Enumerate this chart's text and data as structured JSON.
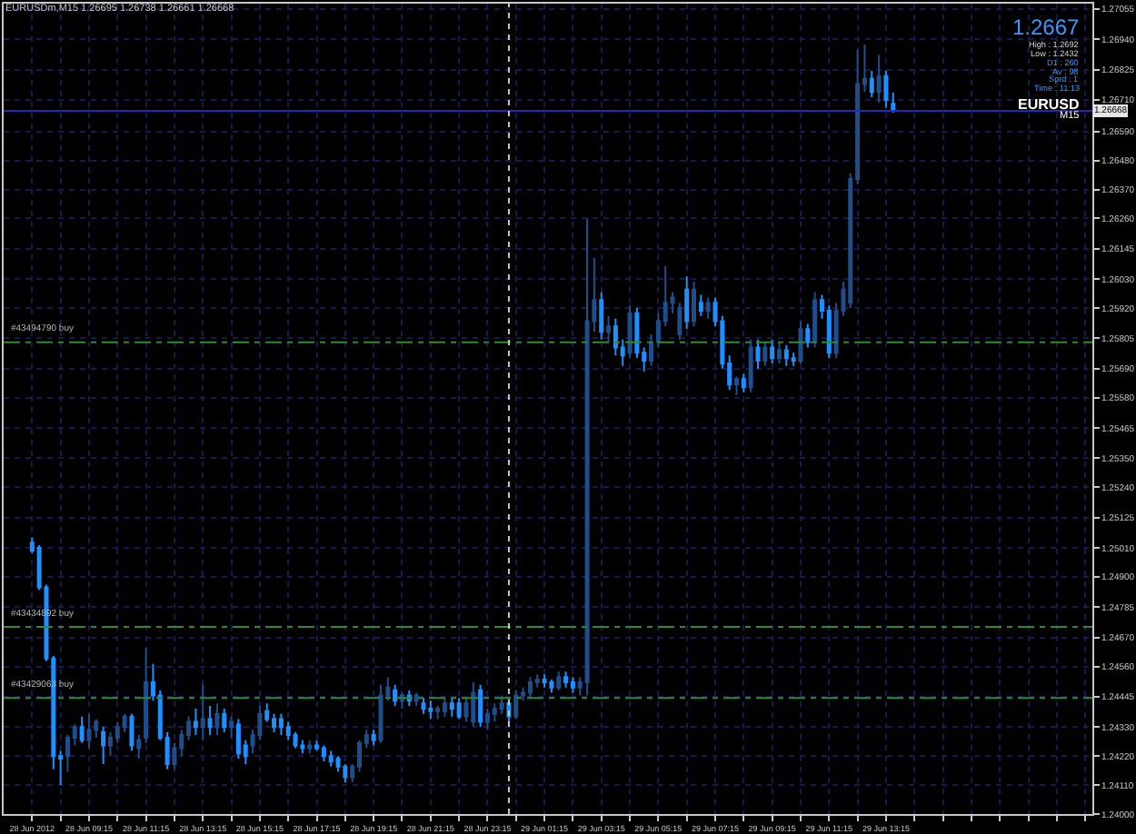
{
  "chart_data": {
    "type": "candlestick",
    "title": "EURUSDm,M15 1.26695 1.26738 1.26661 1.26668",
    "x": [
      "2012-06-28T07:15",
      "2012-06-28T07:30",
      "2012-06-28T07:45",
      "2012-06-28T08:00",
      "2012-06-28T08:15",
      "2012-06-28T08:30",
      "2012-06-28T08:45",
      "2012-06-28T09:00",
      "2012-06-28T09:15",
      "2012-06-28T09:30",
      "2012-06-28T09:45",
      "2012-06-28T10:00",
      "2012-06-28T10:15",
      "2012-06-28T10:30",
      "2012-06-28T10:45",
      "2012-06-28T11:00",
      "2012-06-28T11:15",
      "2012-06-28T11:30",
      "2012-06-28T11:45",
      "2012-06-28T12:00",
      "2012-06-28T12:15",
      "2012-06-28T12:30",
      "2012-06-28T12:45",
      "2012-06-28T13:00",
      "2012-06-28T13:15",
      "2012-06-28T13:30",
      "2012-06-28T13:45",
      "2012-06-28T14:00",
      "2012-06-28T14:15",
      "2012-06-28T14:30",
      "2012-06-28T14:45",
      "2012-06-28T15:00",
      "2012-06-28T15:15",
      "2012-06-28T15:30",
      "2012-06-28T15:45",
      "2012-06-28T16:00",
      "2012-06-28T16:15",
      "2012-06-28T16:30",
      "2012-06-28T16:45",
      "2012-06-28T17:00",
      "2012-06-28T17:15",
      "2012-06-28T17:30",
      "2012-06-28T17:45",
      "2012-06-28T18:00",
      "2012-06-28T18:15",
      "2012-06-28T18:30",
      "2012-06-28T18:45",
      "2012-06-28T19:00",
      "2012-06-28T19:15",
      "2012-06-28T19:30",
      "2012-06-28T19:45",
      "2012-06-28T20:00",
      "2012-06-28T20:15",
      "2012-06-28T20:30",
      "2012-06-28T20:45",
      "2012-06-28T21:00",
      "2012-06-28T21:15",
      "2012-06-28T21:30",
      "2012-06-28T21:45",
      "2012-06-28T22:00",
      "2012-06-28T22:15",
      "2012-06-28T22:30",
      "2012-06-28T22:45",
      "2012-06-28T23:00",
      "2012-06-28T23:15",
      "2012-06-28T23:30",
      "2012-06-28T23:45",
      "2012-06-29T00:00",
      "2012-06-29T00:15",
      "2012-06-29T00:30",
      "2012-06-29T00:45",
      "2012-06-29T01:00",
      "2012-06-29T01:15",
      "2012-06-29T01:30",
      "2012-06-29T01:45",
      "2012-06-29T02:00",
      "2012-06-29T02:15",
      "2012-06-29T02:30",
      "2012-06-29T02:45",
      "2012-06-29T03:00",
      "2012-06-29T03:15",
      "2012-06-29T03:30",
      "2012-06-29T03:45",
      "2012-06-29T04:00",
      "2012-06-29T04:15",
      "2012-06-29T04:30",
      "2012-06-29T04:45",
      "2012-06-29T05:00",
      "2012-06-29T05:15",
      "2012-06-29T05:30",
      "2012-06-29T05:45",
      "2012-06-29T06:00",
      "2012-06-29T06:15",
      "2012-06-29T06:30",
      "2012-06-29T06:45",
      "2012-06-29T07:00",
      "2012-06-29T07:15",
      "2012-06-29T07:30",
      "2012-06-29T07:45",
      "2012-06-29T08:00",
      "2012-06-29T08:15",
      "2012-06-29T08:30",
      "2012-06-29T08:45",
      "2012-06-29T09:00",
      "2012-06-29T09:15",
      "2012-06-29T09:30",
      "2012-06-29T09:45",
      "2012-06-29T10:00",
      "2012-06-29T10:15",
      "2012-06-29T10:30",
      "2012-06-29T10:45",
      "2012-06-29T11:00",
      "2012-06-29T11:15",
      "2012-06-29T11:30",
      "2012-06-29T11:45",
      "2012-06-29T12:00",
      "2012-06-29T12:15",
      "2012-06-29T12:30",
      "2012-06-29T12:45",
      "2012-06-29T13:00",
      "2012-06-29T13:15",
      "2012-06-29T13:30"
    ],
    "ohlc": [
      [
        1.2503,
        1.2505,
        1.2499,
        1.25
      ],
      [
        1.2501,
        1.2502,
        1.2485,
        1.2486
      ],
      [
        1.2486,
        1.2487,
        1.2458,
        1.2459
      ],
      [
        1.2459,
        1.246,
        1.2417,
        1.2422
      ],
      [
        1.2422,
        1.2424,
        1.2411,
        1.2421
      ],
      [
        1.2422,
        1.243,
        1.2416,
        1.2429
      ],
      [
        1.2429,
        1.2434,
        1.2426,
        1.2433
      ],
      [
        1.2433,
        1.2437,
        1.2427,
        1.2428
      ],
      [
        1.2428,
        1.2438,
        1.2425,
        1.2432
      ],
      [
        1.2432,
        1.2436,
        1.2429,
        1.2435
      ],
      [
        1.2431,
        1.2433,
        1.2419,
        1.2426
      ],
      [
        1.2426,
        1.2431,
        1.2422,
        1.2429
      ],
      [
        1.2429,
        1.2435,
        1.2427,
        1.2433
      ],
      [
        1.2433,
        1.2438,
        1.2431,
        1.2437
      ],
      [
        1.2437,
        1.2438,
        1.2424,
        1.2426
      ],
      [
        1.2425,
        1.243,
        1.2421,
        1.2428
      ],
      [
        1.2429,
        1.2463,
        1.2427,
        1.245
      ],
      [
        1.245,
        1.2457,
        1.2443,
        1.2445
      ],
      [
        1.2445,
        1.2447,
        1.2428,
        1.2429
      ],
      [
        1.2429,
        1.2431,
        1.2417,
        1.2419
      ],
      [
        1.2419,
        1.2427,
        1.2417,
        1.2425
      ],
      [
        1.2425,
        1.2432,
        1.2422,
        1.243
      ],
      [
        1.243,
        1.2437,
        1.2428,
        1.2435
      ],
      [
        1.2435,
        1.244,
        1.243,
        1.2433
      ],
      [
        1.2433,
        1.2449,
        1.2428,
        1.2436
      ],
      [
        1.2436,
        1.2441,
        1.243,
        1.2433
      ],
      [
        1.2433,
        1.2442,
        1.243,
        1.2438
      ],
      [
        1.2438,
        1.244,
        1.2431,
        1.2433
      ],
      [
        1.2433,
        1.2437,
        1.2429,
        1.2435
      ],
      [
        1.2434,
        1.2436,
        1.2421,
        1.2423
      ],
      [
        1.2426,
        1.2428,
        1.2419,
        1.2422
      ],
      [
        1.2426,
        1.2432,
        1.2423,
        1.243
      ],
      [
        1.243,
        1.2441,
        1.2428,
        1.2438
      ],
      [
        1.2439,
        1.2442,
        1.2435,
        1.2436
      ],
      [
        1.2436,
        1.2438,
        1.2431,
        1.2433
      ],
      [
        1.2436,
        1.2438,
        1.243,
        1.2433
      ],
      [
        1.2433,
        1.2435,
        1.2428,
        1.243
      ],
      [
        1.243,
        1.2431,
        1.2425,
        1.2426
      ],
      [
        1.2426,
        1.2428,
        1.2423,
        1.2425
      ],
      [
        1.2425,
        1.2428,
        1.2423,
        1.2426
      ],
      [
        1.2426,
        1.2428,
        1.2424,
        1.2425
      ],
      [
        1.2425,
        1.2426,
        1.242,
        1.2422
      ],
      [
        1.2422,
        1.2424,
        1.2418,
        1.242
      ],
      [
        1.2421,
        1.2422,
        1.2416,
        1.2418
      ],
      [
        1.2418,
        1.2419,
        1.2412,
        1.2414
      ],
      [
        1.2414,
        1.2419,
        1.2412,
        1.2418
      ],
      [
        1.2418,
        1.2428,
        1.2416,
        1.2427
      ],
      [
        1.2427,
        1.2432,
        1.2425,
        1.243
      ],
      [
        1.243,
        1.2432,
        1.2426,
        1.2428
      ],
      [
        1.2428,
        1.2449,
        1.2427,
        1.2445
      ],
      [
        1.2445,
        1.2452,
        1.2443,
        1.2448
      ],
      [
        1.2447,
        1.2449,
        1.2441,
        1.2443
      ],
      [
        1.2443,
        1.2446,
        1.244,
        1.2445
      ],
      [
        1.2445,
        1.2447,
        1.2441,
        1.2443
      ],
      [
        1.2443,
        1.2446,
        1.2441,
        1.2445
      ],
      [
        1.2442,
        1.2444,
        1.2438,
        1.244
      ],
      [
        1.244,
        1.2443,
        1.2436,
        1.2439
      ],
      [
        1.2439,
        1.2441,
        1.2436,
        1.244
      ],
      [
        1.2439,
        1.2444,
        1.2437,
        1.2442
      ],
      [
        1.2442,
        1.2444,
        1.2437,
        1.244
      ],
      [
        1.2442,
        1.2444,
        1.2436,
        1.2437
      ],
      [
        1.2437,
        1.2444,
        1.2435,
        1.2442
      ],
      [
        1.2435,
        1.245,
        1.2433,
        1.2446
      ],
      [
        1.2447,
        1.2449,
        1.2433,
        1.2435
      ],
      [
        1.2435,
        1.244,
        1.2432,
        1.2438
      ],
      [
        1.2438,
        1.2442,
        1.2435,
        1.244
      ],
      [
        1.244,
        1.2445,
        1.2438,
        1.2442
      ],
      [
        1.2442,
        1.2444,
        1.2434,
        1.2437
      ],
      [
        1.2437,
        1.2447,
        1.2436,
        1.2445
      ],
      [
        1.2445,
        1.2448,
        1.2443,
        1.2446
      ],
      [
        1.2446,
        1.2452,
        1.2444,
        1.245
      ],
      [
        1.245,
        1.2453,
        1.2448,
        1.2451
      ],
      [
        1.2451,
        1.2453,
        1.2448,
        1.245
      ],
      [
        1.245,
        1.2451,
        1.2446,
        1.2448
      ],
      [
        1.2448,
        1.2454,
        1.2447,
        1.2452
      ],
      [
        1.2452,
        1.2454,
        1.2448,
        1.245
      ],
      [
        1.245,
        1.2452,
        1.2446,
        1.2448
      ],
      [
        1.2448,
        1.2452,
        1.2445,
        1.245
      ],
      [
        1.245,
        1.2626,
        1.2445,
        1.2587
      ],
      [
        1.2587,
        1.2611,
        1.2583,
        1.2595
      ],
      [
        1.2595,
        1.2598,
        1.258,
        1.2583
      ],
      [
        1.2583,
        1.2589,
        1.2579,
        1.2585
      ],
      [
        1.2585,
        1.2588,
        1.2574,
        1.2577
      ],
      [
        1.2577,
        1.258,
        1.257,
        1.2574
      ],
      [
        1.2575,
        1.2593,
        1.2573,
        1.259
      ],
      [
        1.259,
        1.2592,
        1.2573,
        1.2575
      ],
      [
        1.2575,
        1.2577,
        1.2568,
        1.2572
      ],
      [
        1.2572,
        1.2582,
        1.257,
        1.2579
      ],
      [
        1.2579,
        1.259,
        1.2577,
        1.2587
      ],
      [
        1.2587,
        1.2608,
        1.2585,
        1.2594
      ],
      [
        1.2594,
        1.2598,
        1.259,
        1.2596
      ],
      [
        1.2582,
        1.2594,
        1.258,
        1.2592
      ],
      [
        1.2599,
        1.2604,
        1.2584,
        1.2587
      ],
      [
        1.2587,
        1.2602,
        1.2585,
        1.2599
      ],
      [
        1.2594,
        1.2597,
        1.2589,
        1.2591
      ],
      [
        1.2591,
        1.2596,
        1.2588,
        1.2594
      ],
      [
        1.2594,
        1.2596,
        1.2585,
        1.2587
      ],
      [
        1.2587,
        1.2589,
        1.2569,
        1.2571
      ],
      [
        1.2571,
        1.2574,
        1.2561,
        1.2563
      ],
      [
        1.2563,
        1.2566,
        1.2559,
        1.2565
      ],
      [
        1.2565,
        1.2567,
        1.256,
        1.2562
      ],
      [
        1.2562,
        1.258,
        1.256,
        1.2577
      ],
      [
        1.2577,
        1.258,
        1.2569,
        1.2572
      ],
      [
        1.2572,
        1.2579,
        1.257,
        1.2577
      ],
      [
        1.2577,
        1.258,
        1.2571,
        1.2573
      ],
      [
        1.2573,
        1.2579,
        1.2571,
        1.2576
      ],
      [
        1.2576,
        1.2578,
        1.257,
        1.2573
      ],
      [
        1.2573,
        1.2575,
        1.257,
        1.2572
      ],
      [
        1.2572,
        1.2587,
        1.2571,
        1.2584
      ],
      [
        1.2584,
        1.2586,
        1.2577,
        1.2579
      ],
      [
        1.2579,
        1.2598,
        1.2577,
        1.2595
      ],
      [
        1.2595,
        1.2597,
        1.2588,
        1.2591
      ],
      [
        1.2591,
        1.2593,
        1.2573,
        1.2575
      ],
      [
        1.2575,
        1.2594,
        1.2573,
        1.2591
      ],
      [
        1.2591,
        1.2602,
        1.2589,
        1.2599
      ],
      [
        1.2594,
        1.2643,
        1.2592,
        1.2641
      ],
      [
        1.2641,
        1.269,
        1.2639,
        1.2677
      ],
      [
        1.2677,
        1.2692,
        1.2674,
        1.2679
      ],
      [
        1.2679,
        1.2682,
        1.2672,
        1.2674
      ],
      [
        1.2674,
        1.2688,
        1.267,
        1.268
      ],
      [
        1.268,
        1.2682,
        1.2668,
        1.2671
      ],
      [
        1.26695,
        1.26738,
        1.26661,
        1.26668
      ]
    ],
    "colors": [
      "#1e90ff",
      "#1e90ff",
      "#1e90ff",
      "#1e90ff",
      "#1e90ff",
      "#1f4e8c",
      "#1f4e8c",
      "#1e90ff",
      "#1f4e8c",
      "#1f4e8c",
      "#1e90ff",
      "#1f4e8c",
      "#1f4e8c",
      "#1f4e8c",
      "#1e90ff",
      "#1f4e8c",
      "#1f4e8c",
      "#1e90ff",
      "#1e90ff",
      "#1e90ff",
      "#1f4e8c",
      "#1f4e8c",
      "#1f4e8c",
      "#1e90ff",
      "#1f4e8c",
      "#1e90ff",
      "#1f4e8c",
      "#1e90ff",
      "#1f4e8c",
      "#1e90ff",
      "#1e90ff",
      "#1f4e8c",
      "#1f4e8c",
      "#1e90ff",
      "#1e90ff",
      "#1e90ff",
      "#1e90ff",
      "#1e90ff",
      "#1e90ff",
      "#1f4e8c",
      "#1e90ff",
      "#1e90ff",
      "#1e90ff",
      "#1e90ff",
      "#1e90ff",
      "#1f4e8c",
      "#1f4e8c",
      "#1f4e8c",
      "#1e90ff",
      "#1f4e8c",
      "#1f4e8c",
      "#1e90ff",
      "#1f4e8c",
      "#1e90ff",
      "#1f4e8c",
      "#1e90ff",
      "#1e90ff",
      "#1f4e8c",
      "#1f4e8c",
      "#1e90ff",
      "#1e90ff",
      "#1f4e8c",
      "#1f4e8c",
      "#1e90ff",
      "#1f4e8c",
      "#1f4e8c",
      "#1f4e8c",
      "#1e90ff",
      "#1f4e8c",
      "#1f4e8c",
      "#1f4e8c",
      "#1f4e8c",
      "#1e90ff",
      "#1e90ff",
      "#1f4e8c",
      "#1e90ff",
      "#1e90ff",
      "#1f4e8c",
      "#1f4e8c",
      "#1f4e8c",
      "#1e90ff",
      "#1f4e8c",
      "#1e90ff",
      "#1e90ff",
      "#1f4e8c",
      "#1e90ff",
      "#1e90ff",
      "#1f4e8c",
      "#1f4e8c",
      "#1f4e8c",
      "#1f4e8c",
      "#1f4e8c",
      "#1e90ff",
      "#1f4e8c",
      "#1e90ff",
      "#1f4e8c",
      "#1e90ff",
      "#1e90ff",
      "#1e90ff",
      "#1f4e8c",
      "#1e90ff",
      "#1f4e8c",
      "#1e90ff",
      "#1f4e8c",
      "#1e90ff",
      "#1f4e8c",
      "#1e90ff",
      "#1e90ff",
      "#1f4e8c",
      "#1e90ff",
      "#1f4e8c",
      "#1e90ff",
      "#1e90ff",
      "#1f4e8c",
      "#1f4e8c",
      "#1f4e8c",
      "#1f4e8c",
      "#1f4e8c",
      "#1e90ff",
      "#1f4e8c",
      "#1e90ff",
      "#1e90ff"
    ],
    "xlim": [
      "2012-06-28T06:15",
      "2012-06-29T20:30"
    ],
    "ylim": [
      1.24,
      1.27075
    ],
    "xticks": [
      {
        "value": "2012-06-28T07:15",
        "label": "28 Jun 2012"
      },
      {
        "value": "2012-06-28T08:15",
        "label": null
      },
      {
        "value": "2012-06-28T09:15",
        "label": "28 Jun 09:15"
      },
      {
        "value": "2012-06-28T10:15",
        "label": null
      },
      {
        "value": "2012-06-28T11:15",
        "label": "28 Jun 11:15"
      },
      {
        "value": "2012-06-28T12:15",
        "label": null
      },
      {
        "value": "2012-06-28T13:15",
        "label": "28 Jun 13:15"
      },
      {
        "value": "2012-06-28T14:15",
        "label": null
      },
      {
        "value": "2012-06-28T15:15",
        "label": "28 Jun 15:15"
      },
      {
        "value": "2012-06-28T16:15",
        "label": null
      },
      {
        "value": "2012-06-28T17:15",
        "label": "28 Jun 17:15"
      },
      {
        "value": "2012-06-28T18:15",
        "label": null
      },
      {
        "value": "2012-06-28T19:15",
        "label": "28 Jun 19:15"
      },
      {
        "value": "2012-06-28T20:15",
        "label": null
      },
      {
        "value": "2012-06-28T21:15",
        "label": "28 Jun 21:15"
      },
      {
        "value": "2012-06-28T22:15",
        "label": null
      },
      {
        "value": "2012-06-28T23:15",
        "label": "28 Jun 23:15"
      },
      {
        "value": "2012-06-29T00:15",
        "label": null
      },
      {
        "value": "2012-06-29T01:15",
        "label": "29 Jun 01:15"
      },
      {
        "value": "2012-06-29T02:15",
        "label": null
      },
      {
        "value": "2012-06-29T03:15",
        "label": "29 Jun 03:15"
      },
      {
        "value": "2012-06-29T04:15",
        "label": null
      },
      {
        "value": "2012-06-29T05:15",
        "label": "29 Jun 05:15"
      },
      {
        "value": "2012-06-29T06:15",
        "label": null
      },
      {
        "value": "2012-06-29T07:15",
        "label": "29 Jun 07:15"
      },
      {
        "value": "2012-06-29T08:15",
        "label": null
      },
      {
        "value": "2012-06-29T09:15",
        "label": "29 Jun 09:15"
      },
      {
        "value": "2012-06-29T10:15",
        "label": null
      },
      {
        "value": "2012-06-29T11:15",
        "label": "29 Jun 11:15"
      },
      {
        "value": "2012-06-29T12:15",
        "label": null
      },
      {
        "value": "2012-06-29T13:15",
        "label": "29 Jun 13:15"
      },
      {
        "value": "2012-06-29T14:15",
        "label": null
      },
      {
        "value": "2012-06-29T15:15",
        "label": null
      },
      {
        "value": "2012-06-29T16:15",
        "label": null
      },
      {
        "value": "2012-06-29T17:15",
        "label": null
      },
      {
        "value": "2012-06-29T18:15",
        "label": null
      },
      {
        "value": "2012-06-29T19:15",
        "label": null
      },
      {
        "value": "2012-06-29T20:15",
        "label": null
      }
    ],
    "yticks": [
      {
        "value": 1.24,
        "label": "1.24000"
      },
      {
        "value": 1.2411,
        "label": "1.24110"
      },
      {
        "value": 1.2422,
        "label": "1.24220"
      },
      {
        "value": 1.2433,
        "label": "1.24330"
      },
      {
        "value": 1.24445,
        "label": "1.24445"
      },
      {
        "value": 1.2456,
        "label": "1.24560"
      },
      {
        "value": 1.2467,
        "label": "1.24670"
      },
      {
        "value": 1.24785,
        "label": "1.24785"
      },
      {
        "value": 1.249,
        "label": "1.24900"
      },
      {
        "value": 1.2501,
        "label": "1.25010"
      },
      {
        "value": 1.25125,
        "label": "1.25125"
      },
      {
        "value": 1.2524,
        "label": "1.25240"
      },
      {
        "value": 1.2535,
        "label": "1.25350"
      },
      {
        "value": 1.25465,
        "label": "1.25465"
      },
      {
        "value": 1.2558,
        "label": "1.25580"
      },
      {
        "value": 1.2569,
        "label": "1.25690"
      },
      {
        "value": 1.25805,
        "label": "1.25805"
      },
      {
        "value": 1.2592,
        "label": "1.25920"
      },
      {
        "value": 1.2603,
        "label": "1.26030"
      },
      {
        "value": 1.26145,
        "label": "1.26145"
      },
      {
        "value": 1.2626,
        "label": "1.26260"
      },
      {
        "value": 1.2637,
        "label": "1.26370"
      },
      {
        "value": 1.2648,
        "label": "1.26480"
      },
      {
        "value": 1.2659,
        "label": "1.26590"
      },
      {
        "value": 1.2671,
        "label": "1.26710"
      },
      {
        "value": 1.26825,
        "label": "1.26825"
      },
      {
        "value": 1.2694,
        "label": "1.26940"
      },
      {
        "value": 1.27055,
        "label": "1.27055"
      }
    ],
    "grid": true,
    "ref_lines": [
      {
        "axis": "y",
        "value": 1.26668,
        "label": "1.26668",
        "color": "#2626b8",
        "line_style": "solid"
      },
      {
        "axis": "y",
        "value": 1.2579,
        "label": "#43494790 buy",
        "color": "#2e8b2e",
        "line_style": "dashed"
      },
      {
        "axis": "y",
        "value": 1.2471,
        "label": "#43434892 buy",
        "color": "#2e8b2e",
        "line_style": "dashed"
      },
      {
        "axis": "y",
        "value": 1.2444,
        "label": "#43429063 buy",
        "color": "#2e8b2e",
        "line_style": "dashed"
      },
      {
        "axis": "x",
        "value": "2012-06-29T00:00",
        "color": "#c8c8c8",
        "line_style": "dotted"
      }
    ],
    "annotations": [
      "1.2667",
      "High : 1.2692",
      "Low : 1.2432",
      "D1 : 260",
      "Av : 98",
      "Sprd : 1",
      "Time : 11:13",
      "EURUSD",
      "M15"
    ]
  }
}
